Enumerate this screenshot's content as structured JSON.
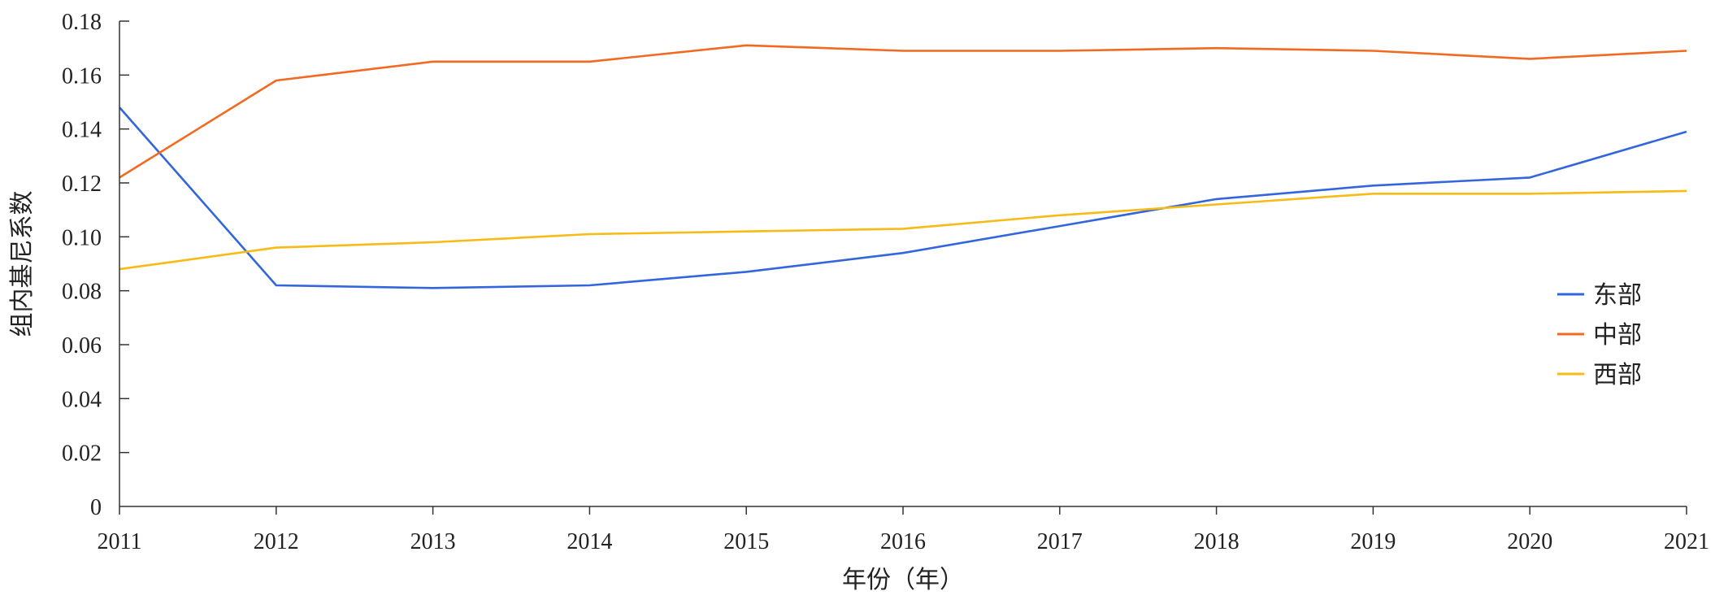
{
  "chart_data": {
    "type": "line",
    "xlabel": "年份（年）",
    "ylabel": "组内基尼系数",
    "x": [
      2011,
      2012,
      2013,
      2014,
      2015,
      2016,
      2017,
      2018,
      2019,
      2020,
      2021
    ],
    "x_tick_labels": [
      "2011",
      "2012",
      "2013",
      "2014",
      "2015",
      "2016",
      "2017",
      "2018",
      "2019",
      "2020",
      "2021"
    ],
    "ylim": [
      0,
      0.18
    ],
    "y_ticks": [
      0,
      0.02,
      0.04,
      0.06,
      0.08,
      0.1,
      0.12,
      0.14,
      0.16,
      0.18
    ],
    "y_tick_labels": [
      "0",
      "0.02",
      "0.04",
      "0.06",
      "0.08",
      "0.10",
      "0.12",
      "0.14",
      "0.16",
      "0.18"
    ],
    "grid": false,
    "legend_position": "right",
    "series": [
      {
        "name": "东部",
        "color": "#3366dd",
        "values": [
          0.148,
          0.082,
          0.081,
          0.082,
          0.087,
          0.094,
          0.104,
          0.114,
          0.119,
          0.122,
          0.139
        ]
      },
      {
        "name": "中部",
        "color": "#f26a22",
        "values": [
          0.122,
          0.158,
          0.165,
          0.165,
          0.171,
          0.169,
          0.169,
          0.17,
          0.169,
          0.166,
          0.169
        ]
      },
      {
        "name": "西部",
        "color": "#f7bb16",
        "values": [
          0.088,
          0.096,
          0.098,
          0.101,
          0.102,
          0.103,
          0.108,
          0.112,
          0.116,
          0.116,
          0.117
        ]
      }
    ]
  }
}
